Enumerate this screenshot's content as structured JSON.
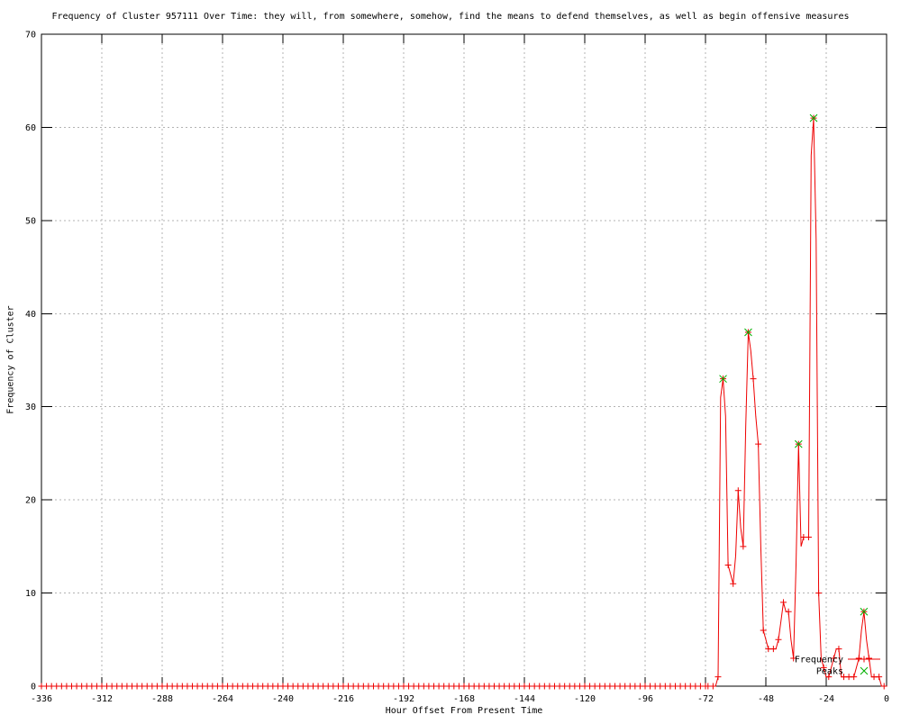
{
  "chart_data": {
    "type": "line",
    "title": "Frequency of Cluster 957111 Over Time: they will, from somewhere, somehow, find the means to defend themselves, as well as begin offensive measures",
    "xlabel": "Hour Offset From Present Time",
    "ylabel": "Frequency of Cluster",
    "xlim": [
      -336,
      0
    ],
    "ylim": [
      0,
      70
    ],
    "x_ticks": [
      -336,
      -312,
      -288,
      -264,
      -240,
      -216,
      -192,
      -168,
      -144,
      -120,
      -96,
      -72,
      -48,
      -24,
      0
    ],
    "y_ticks": [
      0,
      10,
      20,
      30,
      40,
      50,
      60,
      70
    ],
    "grid": true,
    "legend_position": "bottom-right-inside",
    "colors": {
      "frame": "#000000",
      "grid": "#b3b3b3",
      "background": "#ffffff"
    },
    "series": [
      {
        "name": "Frequency",
        "color": "#ee0000",
        "marker": "plus",
        "style": "linespoints",
        "baseline": {
          "from": -336,
          "to": -72,
          "step": 2,
          "value": 0
        },
        "points": [
          [
            -71,
            0
          ],
          [
            -70,
            0
          ],
          [
            -69,
            0
          ],
          [
            -68,
            0
          ],
          [
            -67,
            1
          ],
          [
            -66,
            31
          ],
          [
            -65,
            33
          ],
          [
            -64,
            29
          ],
          [
            -63,
            13
          ],
          [
            -62,
            12
          ],
          [
            -61,
            11
          ],
          [
            -60,
            14
          ],
          [
            -59,
            21
          ],
          [
            -58,
            17
          ],
          [
            -57,
            15
          ],
          [
            -56,
            28
          ],
          [
            -55,
            38
          ],
          [
            -54,
            36
          ],
          [
            -53,
            33
          ],
          [
            -52,
            29
          ],
          [
            -51,
            26
          ],
          [
            -50,
            15
          ],
          [
            -49,
            6
          ],
          [
            -48,
            5
          ],
          [
            -47,
            4
          ],
          [
            -46,
            4
          ],
          [
            -45,
            4
          ],
          [
            -44,
            4
          ],
          [
            -43,
            5
          ],
          [
            -42,
            7
          ],
          [
            -41,
            9
          ],
          [
            -40,
            8
          ],
          [
            -39,
            8
          ],
          [
            -38,
            5
          ],
          [
            -37,
            3
          ],
          [
            -36,
            13
          ],
          [
            -35,
            26
          ],
          [
            -34,
            15
          ],
          [
            -33,
            16
          ],
          [
            -32,
            16
          ],
          [
            -31,
            16
          ],
          [
            -30,
            57
          ],
          [
            -29,
            61
          ],
          [
            -28,
            48
          ],
          [
            -27,
            10
          ],
          [
            -26,
            3
          ],
          [
            -25,
            2
          ],
          [
            -24,
            1
          ],
          [
            -23,
            1
          ],
          [
            -22,
            2
          ],
          [
            -21,
            3
          ],
          [
            -20,
            4
          ],
          [
            -19,
            4
          ],
          [
            -18,
            1
          ],
          [
            -17,
            1
          ],
          [
            -16,
            1
          ],
          [
            -15,
            1
          ],
          [
            -14,
            1
          ],
          [
            -13,
            1
          ],
          [
            -12,
            2
          ],
          [
            -11,
            3
          ],
          [
            -10,
            6
          ],
          [
            -9,
            8
          ],
          [
            -8,
            5
          ],
          [
            -7,
            3
          ],
          [
            -6,
            1
          ],
          [
            -5,
            1
          ],
          [
            -4,
            1
          ],
          [
            -3,
            1
          ],
          [
            -2,
            0
          ],
          [
            -1,
            0
          ],
          [
            0,
            0
          ]
        ]
      },
      {
        "name": "Peaks",
        "color": "#00b000",
        "marker": "cross",
        "style": "points",
        "points": [
          [
            -65,
            33
          ],
          [
            -55,
            38
          ],
          [
            -35,
            26
          ],
          [
            -29,
            61
          ],
          [
            -9,
            8
          ]
        ]
      }
    ],
    "legend": [
      {
        "label": "Frequency"
      },
      {
        "label": "Peaks"
      }
    ]
  }
}
